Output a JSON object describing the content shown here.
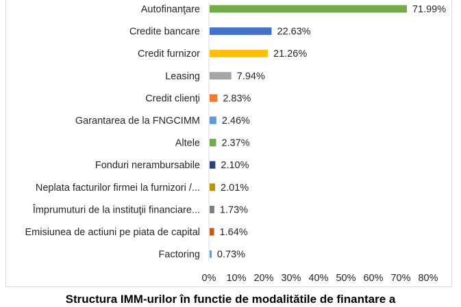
{
  "caption": "Structura IMM-urilor în functie de modalitătile de finantare a",
  "chart_data": {
    "type": "bar",
    "orientation": "horizontal",
    "title": "",
    "xlabel": "",
    "ylabel": "",
    "xlim": [
      0,
      80
    ],
    "x_ticks": [
      "0%",
      "10%",
      "20%",
      "30%",
      "40%",
      "50%",
      "60%",
      "70%",
      "80%"
    ],
    "grid": false,
    "legend": false,
    "categories": [
      "Autofinanţare",
      "Credite bancare",
      "Credit furnizor",
      "Leasing",
      "Credit clienţi",
      "Garantarea de la FNGCIMM",
      "Altele",
      "Fonduri nerambursabile",
      "Neplata facturilor firmei la furnizori /...",
      "Împrumuturi de la instituţii financiare...",
      "Emisiunea de actiuni pe piata de capital",
      "Factoring"
    ],
    "values": [
      71.99,
      22.63,
      21.26,
      7.94,
      2.83,
      2.46,
      2.37,
      2.1,
      2.01,
      1.73,
      1.64,
      0.73
    ],
    "data_labels": [
      "71.99%",
      "22.63%",
      "21.26%",
      "7.94%",
      "2.83%",
      "2.46%",
      "2.37%",
      "2.10%",
      "2.01%",
      "1.73%",
      "1.64%",
      "0.73%"
    ],
    "colors": [
      "#70ad47",
      "#4472c4",
      "#ffc000",
      "#a5a5a5",
      "#ed7d31",
      "#5b9bd5",
      "#70ad47",
      "#264478",
      "#bf9000",
      "#7f7f7f",
      "#c55a11",
      "#5b9bd5"
    ]
  }
}
